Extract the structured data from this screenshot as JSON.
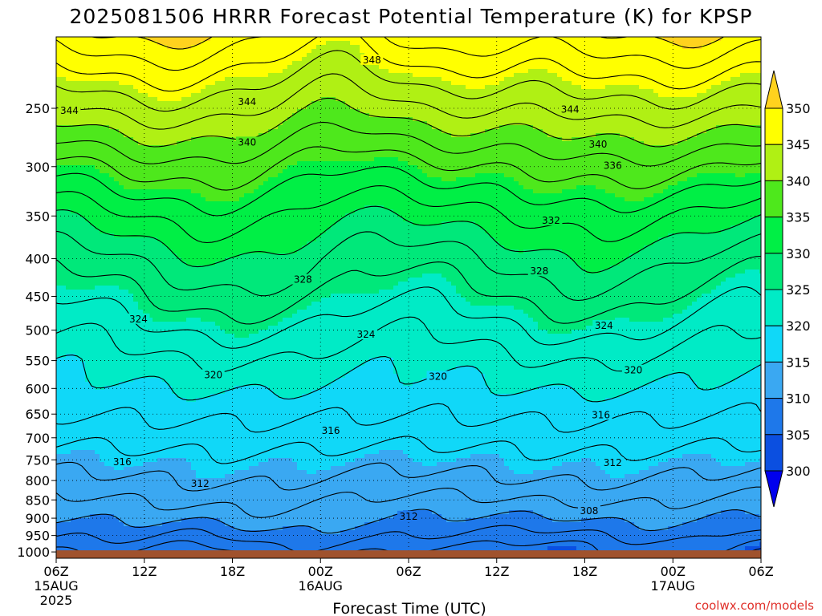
{
  "title": "2025081506 HRRR Forecast Potential Temperature (K) for KPSP",
  "credit": "coolwx.com/models",
  "chart_data": {
    "type": "heatmap",
    "title": "2025081506 HRRR Forecast Potential Temperature (K) for KPSP",
    "xlabel": "Forecast Time (UTC)",
    "ylabel": "",
    "x_ticks": [
      {
        "hour": 0,
        "label": "06Z",
        "sub": "15AUG",
        "sub2": "2025"
      },
      {
        "hour": 6,
        "label": "12Z",
        "sub": "",
        "sub2": ""
      },
      {
        "hour": 12,
        "label": "18Z",
        "sub": "",
        "sub2": ""
      },
      {
        "hour": 18,
        "label": "00Z",
        "sub": "16AUG",
        "sub2": ""
      },
      {
        "hour": 24,
        "label": "06Z",
        "sub": "",
        "sub2": ""
      },
      {
        "hour": 30,
        "label": "12Z",
        "sub": "",
        "sub2": ""
      },
      {
        "hour": 36,
        "label": "18Z",
        "sub": "",
        "sub2": ""
      },
      {
        "hour": 42,
        "label": "00Z",
        "sub": "17AUG",
        "sub2": ""
      },
      {
        "hour": 48,
        "label": "06Z",
        "sub": "",
        "sub2": ""
      }
    ],
    "pressure_ticks": [
      250,
      300,
      350,
      400,
      450,
      500,
      550,
      600,
      650,
      700,
      750,
      800,
      850,
      900,
      950,
      1000
    ],
    "pressure_range": [
      200,
      1020
    ],
    "surface_pressure_hpa": 995,
    "grid": true,
    "colorbar": {
      "levels": [
        300,
        305,
        310,
        315,
        320,
        325,
        330,
        335,
        340,
        345,
        350
      ],
      "colors": [
        "#0000ee",
        "#0b4fe0",
        "#1e78ea",
        "#3aa8f2",
        "#10d8f8",
        "#00ebc6",
        "#00e87a",
        "#00ef45",
        "#4ee81c",
        "#b0f014",
        "#ffff00",
        "#ffd21e"
      ],
      "position": "right"
    },
    "contour_interval": 2,
    "contour_labels": [
      {
        "value": 348,
        "hour": 21.5,
        "p": 215
      },
      {
        "value": 344,
        "hour": 0.9,
        "p": 252
      },
      {
        "value": 344,
        "hour": 13.0,
        "p": 245
      },
      {
        "value": 344,
        "hour": 35.0,
        "p": 251
      },
      {
        "value": 340,
        "hour": 13.0,
        "p": 278
      },
      {
        "value": 340,
        "hour": 36.9,
        "p": 280
      },
      {
        "value": 336,
        "hour": 37.9,
        "p": 299
      },
      {
        "value": 332,
        "hour": 33.7,
        "p": 355
      },
      {
        "value": 328,
        "hour": 16.8,
        "p": 427
      },
      {
        "value": 328,
        "hour": 32.9,
        "p": 416
      },
      {
        "value": 324,
        "hour": 5.6,
        "p": 483
      },
      {
        "value": 324,
        "hour": 21.1,
        "p": 507
      },
      {
        "value": 324,
        "hour": 37.3,
        "p": 493
      },
      {
        "value": 320,
        "hour": 10.7,
        "p": 575
      },
      {
        "value": 320,
        "hour": 26.0,
        "p": 578
      },
      {
        "value": 320,
        "hour": 39.3,
        "p": 567
      },
      {
        "value": 316,
        "hour": 18.7,
        "p": 685
      },
      {
        "value": 316,
        "hour": 37.1,
        "p": 652
      },
      {
        "value": 316,
        "hour": 4.5,
        "p": 755
      },
      {
        "value": 312,
        "hour": 9.8,
        "p": 808
      },
      {
        "value": 312,
        "hour": 37.9,
        "p": 757
      },
      {
        "value": 312,
        "hour": 24.0,
        "p": 895
      },
      {
        "value": 308,
        "hour": 36.3,
        "p": 880
      }
    ],
    "theta_profile": [
      {
        "p": 995,
        "theta": 307.5
      },
      {
        "p": 950,
        "theta": 309.5
      },
      {
        "p": 900,
        "theta": 311.0
      },
      {
        "p": 850,
        "theta": 312.3
      },
      {
        "p": 800,
        "theta": 313.8
      },
      {
        "p": 750,
        "theta": 315.2
      },
      {
        "p": 700,
        "theta": 316.8
      },
      {
        "p": 650,
        "theta": 318.3
      },
      {
        "p": 600,
        "theta": 319.8
      },
      {
        "p": 550,
        "theta": 321.3
      },
      {
        "p": 500,
        "theta": 323.4
      },
      {
        "p": 450,
        "theta": 325.8
      },
      {
        "p": 400,
        "theta": 328.4
      },
      {
        "p": 350,
        "theta": 331.8
      },
      {
        "p": 300,
        "theta": 336.4
      },
      {
        "p": 250,
        "theta": 342.6
      },
      {
        "p": 200,
        "theta": 349.5
      }
    ]
  }
}
